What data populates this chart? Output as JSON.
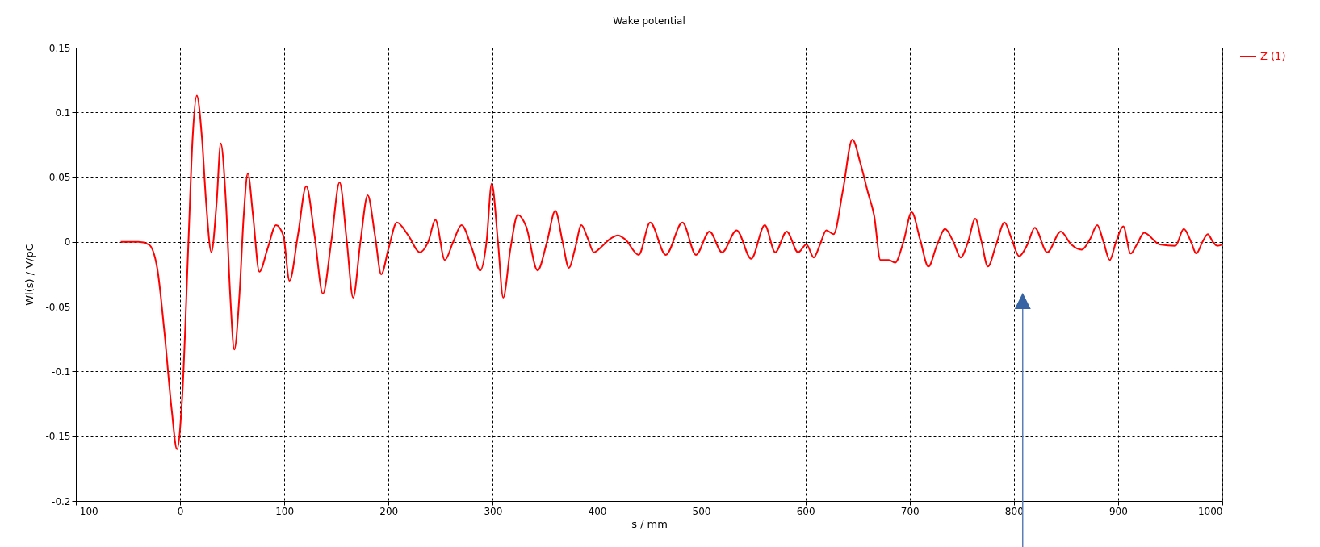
{
  "chart_data": {
    "type": "line",
    "title": "Wake potential",
    "xlabel": "s / mm",
    "ylabel": "Wl(s) / V/pC",
    "xlim": [
      -100,
      1000
    ],
    "xticks": [
      -100,
      0,
      100,
      200,
      300,
      400,
      500,
      600,
      700,
      800,
      900,
      1000
    ],
    "ylim": [
      -0.2,
      0.15
    ],
    "yticks": [
      -0.2,
      -0.15,
      -0.1,
      -0.05,
      0,
      0.05,
      0.1,
      0.15
    ],
    "grid": true,
    "legend": "top right",
    "line_style": "solid",
    "marker": "none",
    "x": [
      -57,
      -40,
      -30,
      -22,
      -15,
      -8,
      -3,
      2,
      8,
      12,
      16,
      21,
      25,
      30,
      35,
      39,
      44,
      48,
      52,
      57,
      61,
      65,
      70,
      76,
      84,
      92,
      99,
      105,
      113,
      121,
      129,
      137,
      145,
      153,
      160,
      166,
      173,
      180,
      187,
      193,
      200,
      208,
      219,
      230,
      238,
      245,
      254,
      262,
      270,
      280,
      288,
      294,
      299,
      305,
      310,
      317,
      324,
      332,
      343,
      352,
      360,
      367,
      373,
      379,
      385,
      391,
      397,
      404,
      412,
      420,
      427,
      440,
      451,
      466,
      482,
      495,
      508,
      520,
      534,
      548,
      561,
      571,
      582,
      593,
      601,
      608,
      614,
      620,
      627,
      636,
      645,
      653,
      660,
      666,
      672,
      680,
      686,
      694,
      702,
      710,
      718,
      726,
      734,
      742,
      749,
      756,
      763,
      769,
      775,
      783,
      791,
      798,
      805,
      813,
      820,
      832,
      845,
      855,
      865,
      873,
      880,
      886,
      892,
      898,
      905,
      912,
      918,
      925,
      940,
      955,
      963,
      970,
      975,
      981,
      986,
      991,
      995,
      1000
    ],
    "series": [
      {
        "name": "Z (1)",
        "color": "#ff0000",
        "values": [
          0,
          0,
          -0.002,
          -0.02,
          -0.07,
          -0.13,
          -0.16,
          -0.12,
          0.0,
          0.08,
          0.113,
          0.08,
          0.03,
          -0.008,
          0.03,
          0.076,
          0.03,
          -0.04,
          -0.083,
          -0.04,
          0.02,
          0.053,
          0.02,
          -0.023,
          -0.005,
          0.013,
          0.005,
          -0.03,
          0.005,
          0.043,
          0.005,
          -0.04,
          0.0,
          0.046,
          0.0,
          -0.043,
          0.0,
          0.036,
          0.005,
          -0.025,
          -0.005,
          0.015,
          0.005,
          -0.008,
          0.0,
          0.017,
          -0.014,
          0.0,
          0.013,
          -0.005,
          -0.022,
          0.0,
          0.045,
          0.0,
          -0.043,
          -0.005,
          0.021,
          0.012,
          -0.022,
          0.0,
          0.024,
          0.0,
          -0.02,
          -0.005,
          0.013,
          0.003,
          -0.008,
          -0.004,
          0.002,
          0.005,
          0.002,
          -0.01,
          0.015,
          -0.01,
          0.015,
          -0.01,
          0.008,
          -0.008,
          0.009,
          -0.013,
          0.013,
          -0.008,
          0.008,
          -0.008,
          -0.002,
          -0.012,
          -0.002,
          0.009,
          0.006,
          0.04,
          0.079,
          0.06,
          0.038,
          0.02,
          -0.014,
          -0.014,
          -0.016,
          0.0,
          0.023,
          0.002,
          -0.019,
          -0.003,
          0.01,
          0.0,
          -0.012,
          0.0,
          0.018,
          0.0,
          -0.019,
          -0.002,
          0.015,
          0.002,
          -0.011,
          -0.002,
          0.011,
          -0.008,
          0.008,
          -0.002,
          -0.006,
          0.002,
          0.013,
          0.0,
          -0.014,
          0.0,
          0.012,
          -0.009,
          -0.002,
          0.007,
          -0.002,
          -0.003,
          0.01,
          0.0,
          -0.009,
          0.0,
          0.006,
          0.0,
          -0.003,
          -0.002
        ]
      }
    ]
  }
}
